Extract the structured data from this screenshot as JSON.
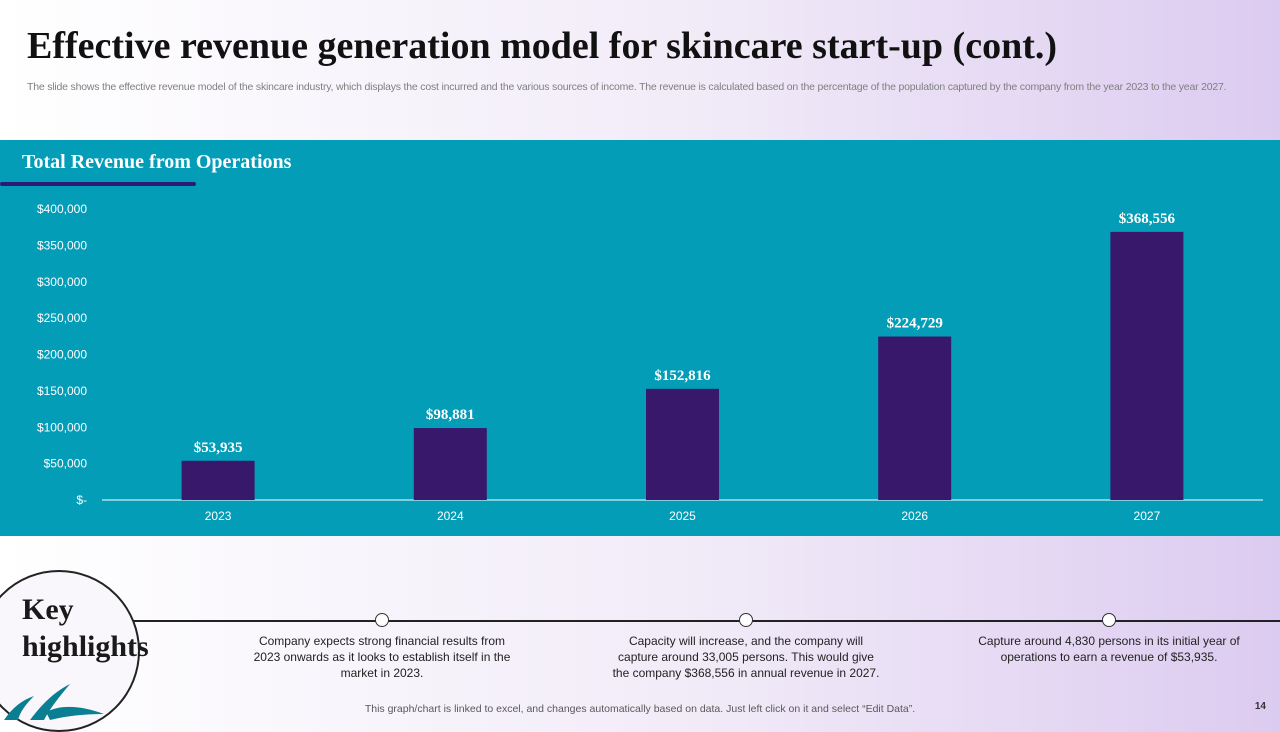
{
  "slide": {
    "title": "Effective revenue generation model for skincare start-up (cont.)",
    "subtitle": "The slide shows the effective revenue model of the skincare industry, which displays the cost incurred and the various sources of income. The revenue is calculated based on the percentage of the population captured by the company from the year 2023 to the year 2027.",
    "page_number": "14",
    "footnote": "This graph/chart is linked to excel, and changes automatically based on data. Just left click on it and select “Edit Data”."
  },
  "panel": {
    "title": "Total Revenue from Operations",
    "background_color": "#049db8",
    "bar_color": "#38186b"
  },
  "chart_data": {
    "type": "bar",
    "title": "Total Revenue from Operations",
    "xlabel": "",
    "ylabel": "",
    "categories": [
      "2023",
      "2024",
      "2025",
      "2026",
      "2027"
    ],
    "values": [
      53935,
      98881,
      152816,
      224729,
      368556
    ],
    "value_labels": [
      "$53,935",
      "$98,881",
      "$152,816",
      "$224,729",
      "$368,556"
    ],
    "ylim": [
      0,
      400000
    ],
    "yticks": [
      0,
      50000,
      100000,
      150000,
      200000,
      250000,
      300000,
      350000,
      400000
    ],
    "ytick_labels": [
      "$-",
      "$50,000",
      "$100,000",
      "$150,000",
      "$200,000",
      "$250,000",
      "$300,000",
      "$350,000",
      "$400,000"
    ],
    "grid": false,
    "legend": "none"
  },
  "highlights": {
    "heading_line1": "Key",
    "heading_line2": "highlights",
    "items": [
      "Company expects strong financial results from 2023 onwards as it looks to establish itself in the market in 2023.",
      "Capacity will increase, and the company will capture around 33,005 persons. This would give the company $368,556 in annual revenue in 2027.",
      "Capture around 4,830 persons in its initial year of operations to earn a revenue of $53,935."
    ]
  }
}
